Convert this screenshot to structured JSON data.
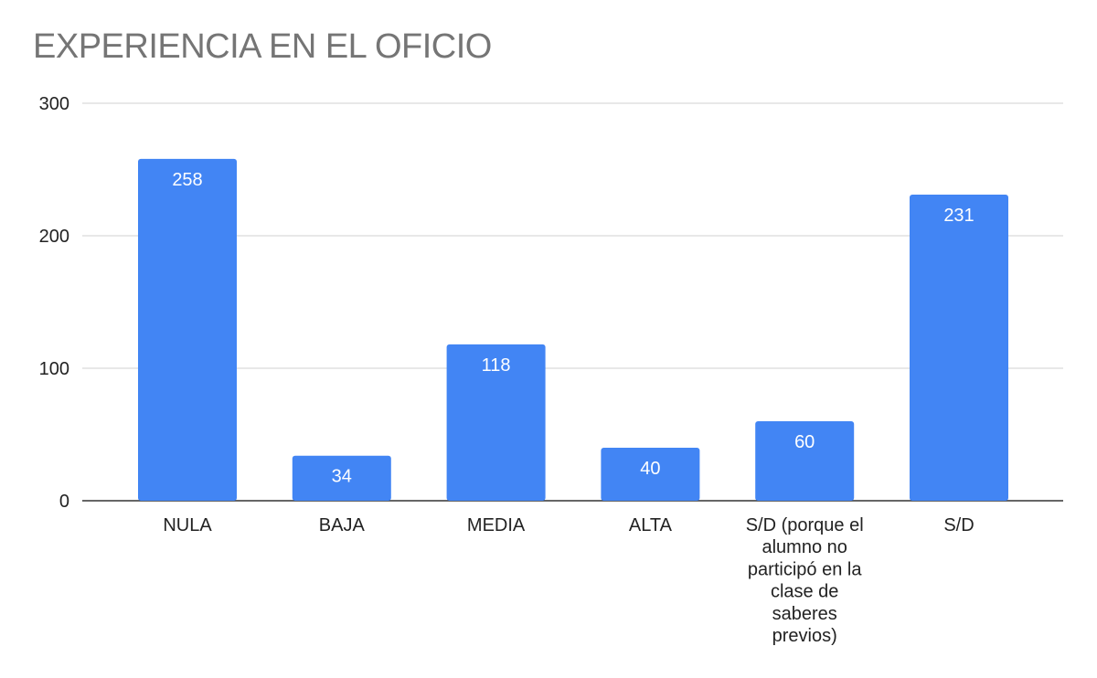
{
  "chart_data": {
    "type": "bar",
    "title": "EXPERIENCIA EN EL OFICIO",
    "categories": [
      "NULA",
      "BAJA",
      "MEDIA",
      "ALTA",
      "S/D (porque el alumno no participó en la clase de saberes previos)",
      "S/D"
    ],
    "values": [
      258,
      34,
      118,
      40,
      60,
      231
    ],
    "category_lines": [
      [
        "NULA"
      ],
      [
        "BAJA"
      ],
      [
        "MEDIA"
      ],
      [
        "ALTA"
      ],
      [
        "S/D (porque el",
        "alumno no",
        "participó en la",
        "clase de",
        "saberes",
        "previos)"
      ],
      [
        "S/D"
      ]
    ],
    "ylim": [
      0,
      300
    ],
    "yticks": [
      0,
      100,
      200,
      300
    ],
    "grid": true,
    "data_labels": true,
    "bar_color": "#4285f4",
    "grid_color": "#d9d9d9",
    "axis_color": "#333333"
  }
}
